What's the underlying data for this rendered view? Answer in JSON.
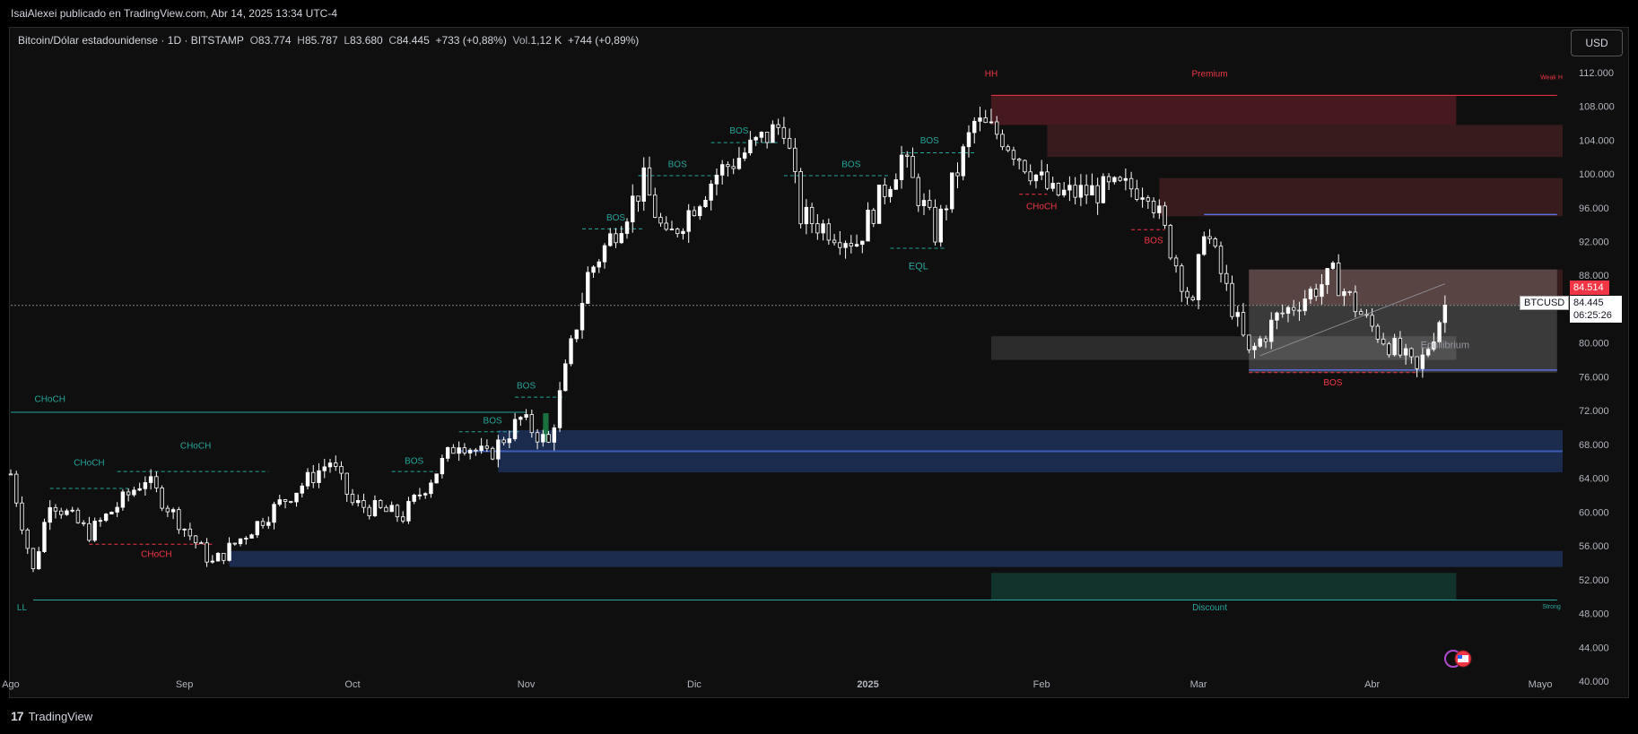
{
  "header": {
    "publisher_line": "IsaiAlexei publicado en TradingView.com, Abr 14, 2025 13:34 UTC-4"
  },
  "legend": {
    "symbol": "Bitcoin/Dólar estadounidense · 1D · BITSTAMP",
    "o_label": "O",
    "o_value": "83.774",
    "h_label": "H",
    "h_value": "85.787",
    "l_label": "L",
    "l_value": "83.680",
    "c_label": "C",
    "c_value": "84.445",
    "change": "+733 (+0,88%)",
    "vol_label": "Vol.",
    "vol_value": "1,12 K",
    "vol_change": "+744 (+0,89%)"
  },
  "currency_button": "USD",
  "price_axis": {
    "ticks": [
      "112.000",
      "108.000",
      "104.000",
      "100.000",
      "96.000",
      "92.000",
      "88.000",
      "80.000",
      "76.000",
      "72.000",
      "68.000",
      "64.000",
      "60.000",
      "56.000",
      "52.000",
      "48.000",
      "44.000",
      "40.000"
    ],
    "last_price_red": "84.514",
    "symbol_tag": "BTCUSD",
    "current_price": "84.445",
    "countdown": "06:25:26"
  },
  "time_axis": {
    "ticks": [
      "Ago",
      "Sep",
      "Oct",
      "Nov",
      "Dic",
      "2025",
      "Feb",
      "Mar",
      "Abr",
      "Mayo"
    ]
  },
  "annotations": {
    "hh": "HH",
    "premium": "Premium",
    "weak_high": "Weak H",
    "equilibrium": "Equilibrium",
    "discount": "Discount",
    "strong_low": "Strong",
    "ll": "LL",
    "eql": "EQL",
    "bos": "BOS",
    "choch": "CHoCH"
  },
  "footer": {
    "brand": "TradingView",
    "brand_mark": "17"
  },
  "colors": {
    "bull": "#ffffff",
    "bear": "#ffffff",
    "premium_zone": "#5a1e24",
    "discount_zone": "#123a30",
    "bullish_ob": "#1b2d52",
    "bearish_ob": "#4a2224",
    "teal": "#26a69a",
    "red": "#f23645",
    "blue_line": "#5b6ee1"
  },
  "chart_data": {
    "type": "candlestick",
    "title": "Bitcoin/Dólar estadounidense · 1D · BITSTAMP",
    "ylabel": "USD",
    "ylim": [
      40000,
      114000
    ],
    "x_range": [
      "2024-08-01",
      "2025-05-05"
    ],
    "anchors": [
      [
        "2024-08-01",
        64500
      ],
      [
        "2024-08-05",
        53000
      ],
      [
        "2024-08-08",
        61500
      ],
      [
        "2024-08-15",
        57500
      ],
      [
        "2024-08-25",
        64000
      ],
      [
        "2024-09-06",
        53900
      ],
      [
        "2024-09-18",
        61000
      ],
      [
        "2024-09-27",
        66000
      ],
      [
        "2024-10-01",
        61000
      ],
      [
        "2024-10-10",
        59500
      ],
      [
        "2024-10-20",
        68500
      ],
      [
        "2024-10-25",
        66500
      ],
      [
        "2024-10-31",
        71000
      ],
      [
        "2024-11-05",
        68000
      ],
      [
        "2024-11-12",
        88000
      ],
      [
        "2024-11-22",
        99000
      ],
      [
        "2024-11-26",
        92000
      ],
      [
        "2024-12-05",
        100000
      ],
      [
        "2024-12-17",
        106000
      ],
      [
        "2024-12-20",
        95000
      ],
      [
        "2024-12-30",
        92000
      ],
      [
        "2025-01-07",
        102000
      ],
      [
        "2025-01-13",
        93000
      ],
      [
        "2025-01-20",
        106000
      ],
      [
        "2025-01-25",
        104500
      ],
      [
        "2025-02-03",
        97500
      ],
      [
        "2025-02-20",
        98500
      ],
      [
        "2025-02-28",
        84000
      ],
      [
        "2025-03-02",
        94000
      ],
      [
        "2025-03-10",
        78500
      ],
      [
        "2025-03-15",
        83000
      ],
      [
        "2025-03-25",
        88000
      ],
      [
        "2025-03-31",
        82500
      ],
      [
        "2025-04-07",
        78000
      ],
      [
        "2025-04-09",
        76500
      ],
      [
        "2025-04-14",
        84445
      ]
    ],
    "annotated_levels": {
      "hh": 109300,
      "ll": 49600,
      "premium_top": 109300,
      "equilibrium": 79500,
      "discount_bottom": 49600,
      "current": 84445
    }
  }
}
